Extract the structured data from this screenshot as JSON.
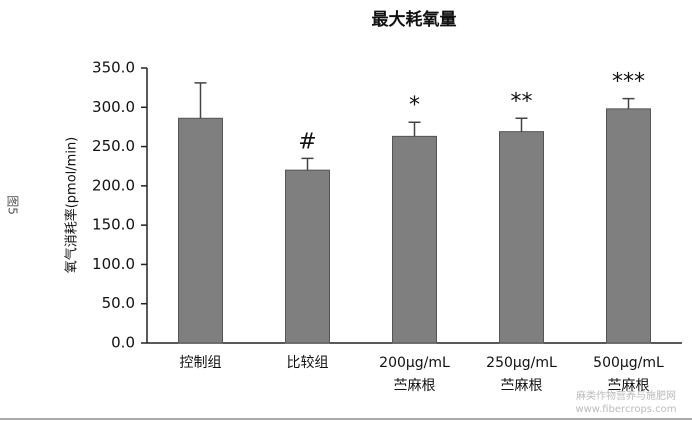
{
  "chart_data": {
    "type": "bar",
    "title": "最大耗氧量",
    "y_label": "氧气消耗率(pmol/min)",
    "figure_label": "图5",
    "watermark": [
      "麻类作物营养与施肥网",
      "www.fibercrops.com"
    ],
    "categories": [
      [
        "控制组"
      ],
      [
        "比较组"
      ],
      [
        "200μg/mL",
        "苎麻根"
      ],
      [
        "250μg/mL",
        "苎麻根"
      ],
      [
        "500μg/mL",
        "苎麻根"
      ]
    ],
    "values": [
      286,
      220,
      263,
      269,
      298
    ],
    "errors": [
      45,
      15,
      18,
      17,
      13
    ],
    "annotations": [
      null,
      "#",
      "*",
      "**",
      "***"
    ],
    "color": "#7f7f7f",
    "ylim": [
      0,
      350
    ],
    "yticks": [
      {
        "value": 0,
        "label": "0.0"
      },
      {
        "value": 50,
        "label": "50.0"
      },
      {
        "value": 100,
        "label": "100.0"
      },
      {
        "value": 150,
        "label": "150.0"
      },
      {
        "value": 200,
        "label": "200.0"
      },
      {
        "value": 250,
        "label": "250.0"
      },
      {
        "value": 300,
        "label": "300.0"
      },
      {
        "value": 350,
        "label": "350.0"
      }
    ]
  }
}
